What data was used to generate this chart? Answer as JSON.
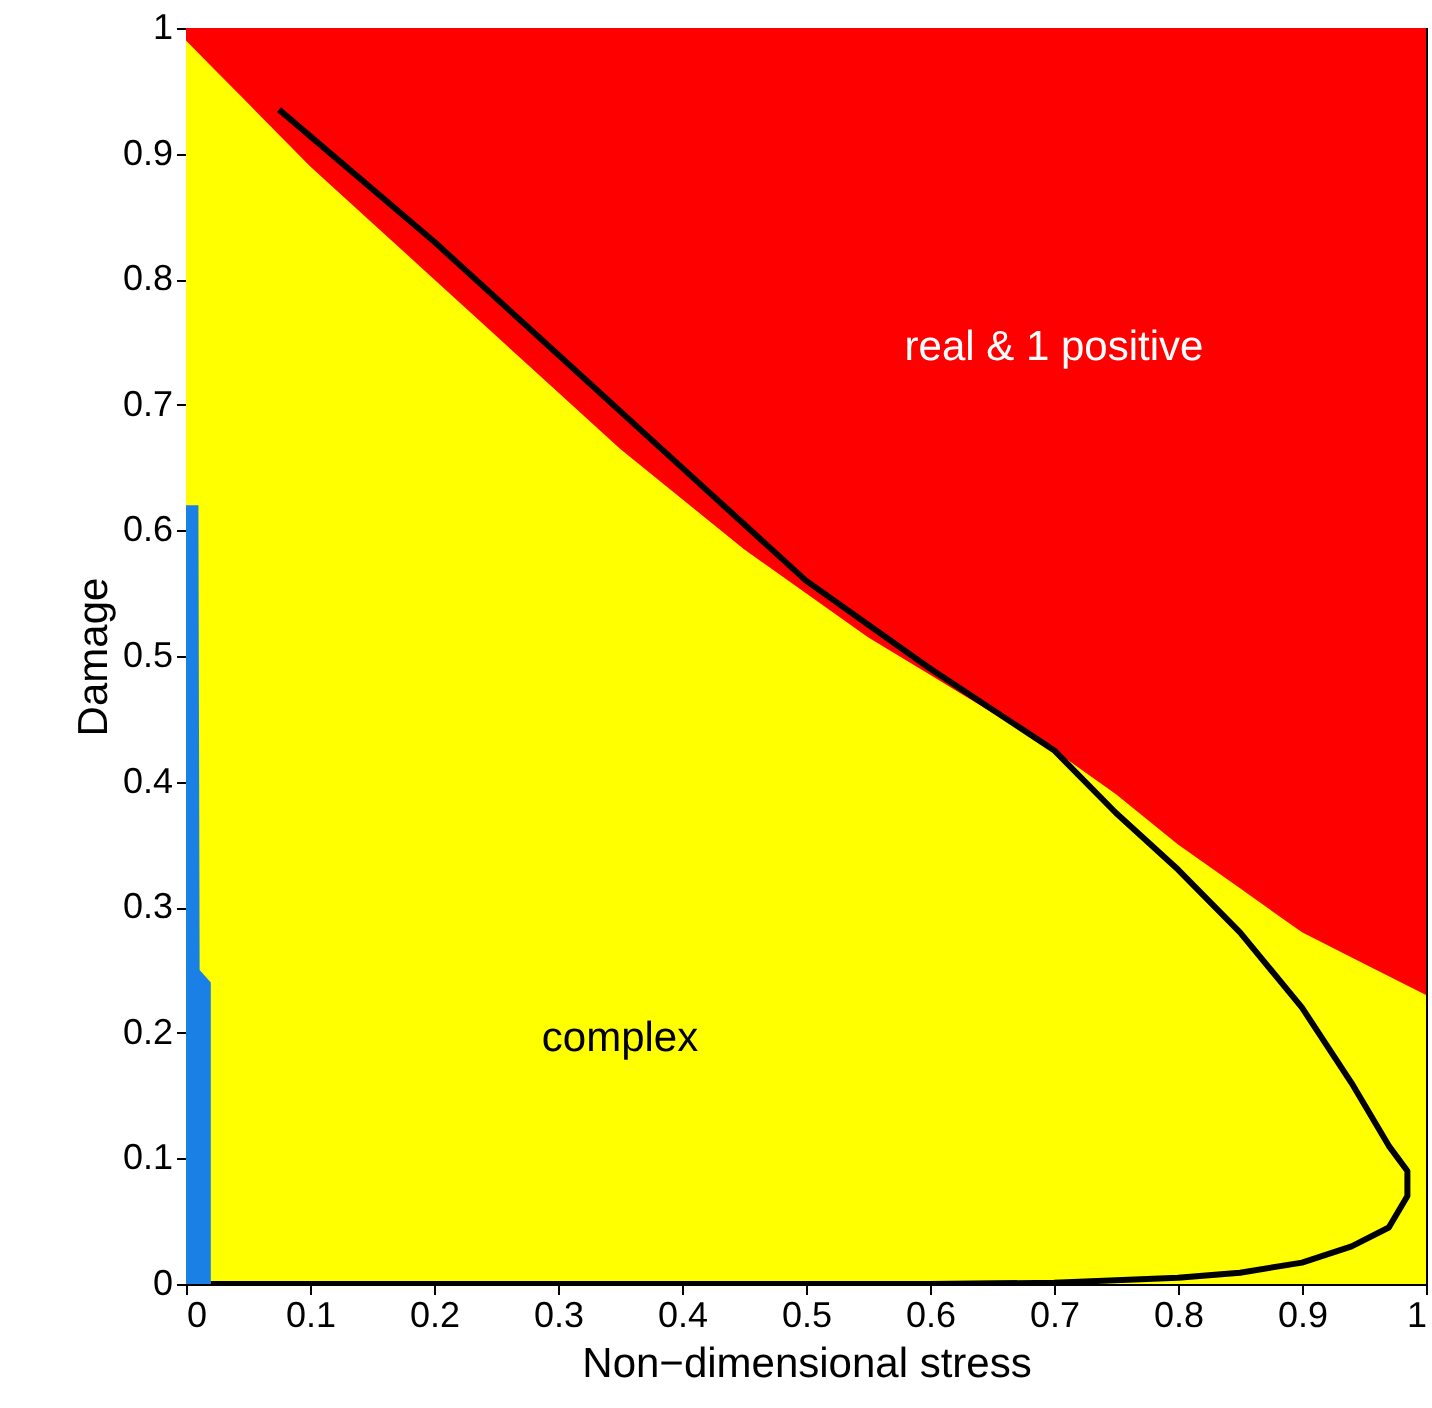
{
  "chart_data": {
    "type": "area",
    "xlabel": "Non−dimensional stress",
    "ylabel": "Damage",
    "x": [
      0,
      0.02,
      0.05,
      0.1,
      0.15,
      0.2,
      0.25,
      0.3,
      0.35,
      0.4,
      0.45,
      0.5,
      0.55,
      0.6,
      0.65,
      0.7,
      0.75,
      0.8,
      0.85,
      0.9,
      0.95,
      1
    ],
    "series": [
      {
        "color": "#ff0000",
        "values": [
          1,
          1,
          1,
          1,
          1,
          1,
          1,
          1,
          1,
          1,
          1,
          1,
          1,
          1,
          1,
          1,
          1,
          1,
          1,
          1,
          1,
          1
        ]
      },
      {
        "color": "#ffff00",
        "values": [
          0.99,
          0.97,
          0.94,
          0.89,
          0.845,
          0.8,
          0.755,
          0.71,
          0.665,
          0.625,
          0.585,
          0.55,
          0.515,
          0.485,
          0.455,
          0.425,
          0.39,
          0.35,
          0.315,
          0.28,
          0.255,
          0.23
        ]
      },
      {
        "type": "area",
        "color": "#1a80e6",
        "x": [
          0,
          0.01,
          0.011,
          0.02
        ],
        "values": [
          0.62,
          0.62,
          0.25,
          0.24
        ]
      },
      {
        "type": "line",
        "color": "#000000",
        "x": [
          0.075,
          0.2,
          0.3,
          0.4,
          0.5,
          0.6,
          0.7,
          0.75,
          0.8,
          0.85,
          0.9,
          0.94,
          0.97,
          0.985,
          0.985,
          0.97,
          0.94,
          0.9,
          0.85,
          0.8,
          0.7,
          0.6,
          0.4,
          0.2,
          0.02
        ],
        "values": [
          0.935,
          0.83,
          0.74,
          0.65,
          0.56,
          0.49,
          0.425,
          0.375,
          0.33,
          0.28,
          0.22,
          0.16,
          0.11,
          0.09,
          0.07,
          0.045,
          0.03,
          0.017,
          0.009,
          0.005,
          0.001,
          0,
          0,
          0,
          0
        ]
      }
    ],
    "annotations": [
      "real & 1 positive",
      "complex"
    ],
    "xlim": [
      0,
      1
    ],
    "ylim": [
      0,
      1
    ],
    "xticks": [
      0,
      0.1,
      0.2,
      0.3,
      0.4,
      0.5,
      0.6,
      0.7,
      0.8,
      0.9,
      1
    ],
    "yticks": [
      0,
      0.1,
      0.2,
      0.3,
      0.4,
      0.5,
      0.6,
      0.7,
      0.8,
      0.9,
      1
    ],
    "grid": false
  }
}
